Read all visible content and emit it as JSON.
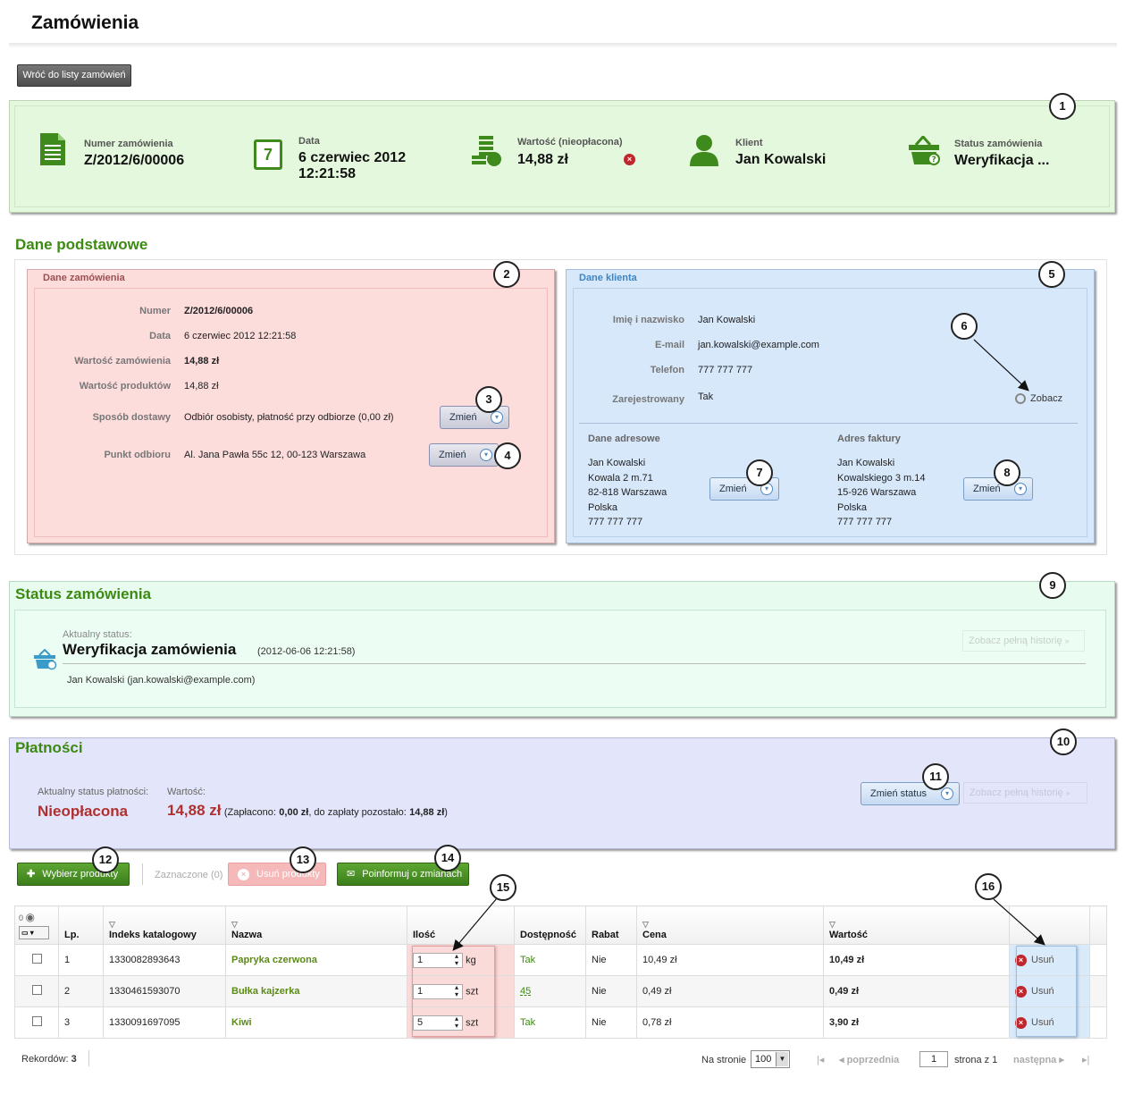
{
  "page": {
    "title": "Zamówienia",
    "back_button": "Wróć do listy zamówień"
  },
  "summary": {
    "order_number_label": "Numer zamówienia",
    "order_number": "Z/2012/6/00006",
    "date_label": "Data",
    "date_line1": "6 czerwiec 2012",
    "date_line2": "12:21:58",
    "value_label": "Wartość (nieopłacona)",
    "value": "14,88 zł",
    "client_label": "Klient",
    "client": "Jan Kowalski",
    "status_label": "Status zamówienia",
    "status": "Weryfikacja ...",
    "calendar_day": "7"
  },
  "basic": {
    "title": "Dane podstawowe",
    "order": {
      "title": "Dane zamówienia",
      "rows": [
        {
          "label": "Numer",
          "value": "Z/2012/6/00006"
        },
        {
          "label": "Data",
          "value": "6 czerwiec 2012 12:21:58"
        },
        {
          "label": "Wartość zamówienia",
          "value": "14,88 zł"
        },
        {
          "label": "Wartość produktów",
          "value": "14,88 zł"
        },
        {
          "label": "Sposób dostawy",
          "value": "Odbiór osobisty, płatność przy odbiorze (0,00 zł)"
        },
        {
          "label": "Punkt odbioru",
          "value": "Al. Jana Pawła 55c 12, 00-123 Warszawa"
        }
      ],
      "change_label": "Zmień"
    },
    "client": {
      "title": "Dane klienta",
      "rows": [
        {
          "label": "Imię i nazwisko",
          "value": "Jan Kowalski"
        },
        {
          "label": "E-mail",
          "value": "jan.kowalski@example.com"
        },
        {
          "label": "Telefon",
          "value": "777 777 777"
        },
        {
          "label": "Zarejestrowany",
          "value": "Tak"
        }
      ],
      "view_label": "Zobacz",
      "address_title": "Dane adresowe",
      "address": [
        "Jan Kowalski",
        "Kowala 2 m.71",
        "82-818 Warszawa",
        "Polska",
        "777 777 777"
      ],
      "invoice_title": "Adres faktury",
      "invoice": [
        "Jan Kowalski",
        "Kowalskiego 3 m.14",
        "15-926 Warszawa",
        "Polska",
        "777 777 777"
      ],
      "change_label": "Zmień"
    }
  },
  "status": {
    "title": "Status zamówienia",
    "current_label": "Aktualny status:",
    "current": "Weryfikacja zamówienia",
    "timestamp": "(2012-06-06 12:21:58)",
    "author": "Jan Kowalski (jan.kowalski@example.com)",
    "history_button": "Zobacz pełną historię"
  },
  "payments": {
    "title": "Płatności",
    "status_label": "Aktualny status płatności:",
    "status": "Nieopłacona",
    "value_label": "Wartość:",
    "value": "14,88 zł",
    "paid_prefix": "(Zapłacono:",
    "paid": "0,00 zł",
    "remaining_prefix": ", do zapłaty pozostało:",
    "remaining": "14,88 zł",
    "closing": ")",
    "change_status": "Zmień status",
    "history_button": "Zobacz pełną historię"
  },
  "toolbar": {
    "select_products": "Wybierz produkty",
    "selected": "Zaznaczone (0)",
    "delete_products": "Usuń produkty",
    "notify": "Poinformuj o zmianach"
  },
  "table": {
    "visible_count": "0",
    "columns": [
      "Lp.",
      "Indeks katalogowy",
      "Nazwa",
      "Ilość",
      "Dostępność",
      "Rabat",
      "Cena",
      "Wartość"
    ],
    "rows": [
      {
        "lp": "1",
        "index": "1330082893643",
        "name": "Papryka czerwona",
        "qty": "1",
        "unit": "kg",
        "avail": "Tak",
        "discount": "Nie",
        "price": "10,49 zł",
        "value": "10,49 zł"
      },
      {
        "lp": "2",
        "index": "1330461593070",
        "name": "Bułka kajzerka",
        "qty": "1",
        "unit": "szt",
        "avail": "45",
        "discount": "Nie",
        "price": "0,49 zł",
        "value": "0,49 zł"
      },
      {
        "lp": "3",
        "index": "1330091697095",
        "name": "Kiwi",
        "qty": "5",
        "unit": "szt",
        "avail": "Tak",
        "discount": "Nie",
        "price": "0,78 zł",
        "value": "3,90 zł"
      }
    ],
    "delete_label": "Usuń"
  },
  "footer": {
    "records_label": "Rekordów:",
    "records": "3",
    "per_page_label": "Na stronie",
    "per_page": "100",
    "prev": "poprzednia",
    "page": "1",
    "page_of": "strona z 1",
    "next": "następna"
  },
  "badges": [
    "1",
    "2",
    "3",
    "4",
    "5",
    "6",
    "7",
    "8",
    "9",
    "10",
    "11",
    "12",
    "13",
    "14",
    "15",
    "16"
  ]
}
